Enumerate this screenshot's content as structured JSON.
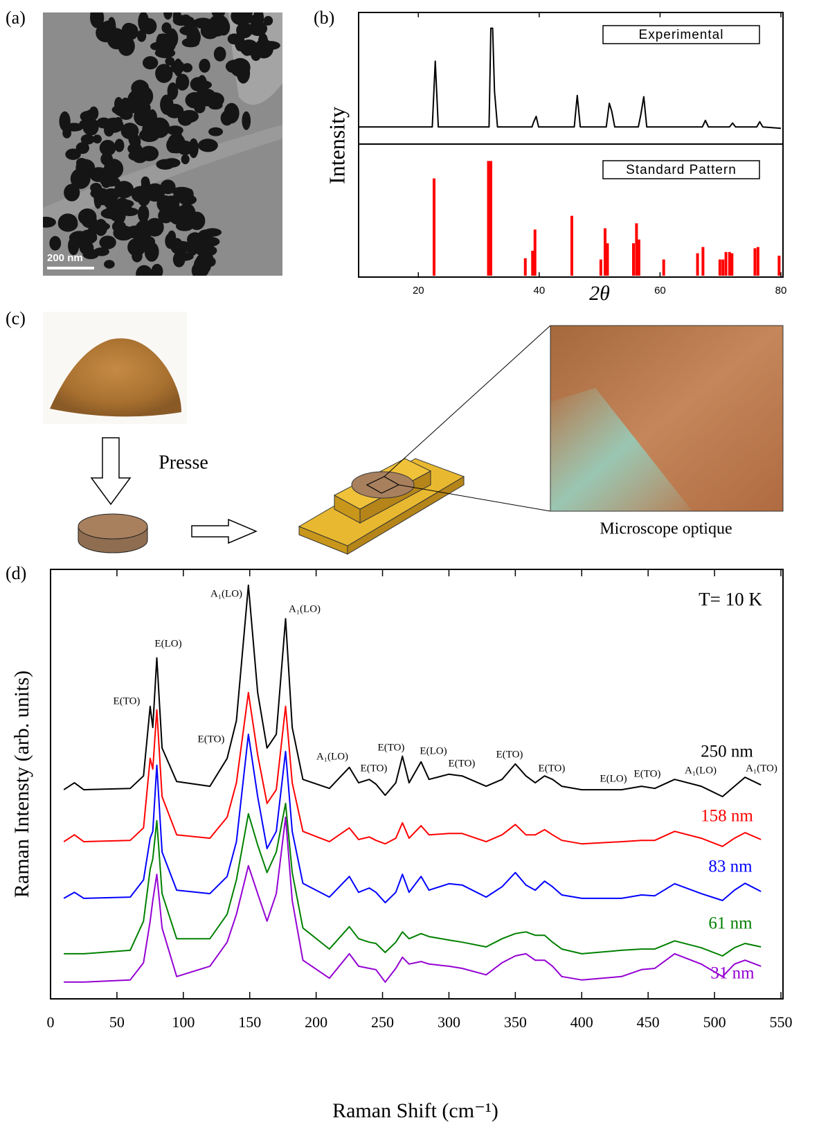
{
  "panel_labels": [
    "(a)",
    "(b)",
    "(c)",
    "(d)"
  ],
  "tem": {
    "scale_bar": "200 nm"
  },
  "diagram": {
    "press_label": "Presse",
    "microscope_label": "Microscope optique"
  },
  "chart_data": [
    {
      "type": "line",
      "label": "Experimental",
      "ylabel": "Intensity",
      "color": "#000000",
      "xlim": [
        10,
        80
      ],
      "ylim": [
        0,
        100
      ],
      "x": [
        10,
        22.3,
        22.8,
        23.3,
        31.7,
        32.0,
        32.3,
        32.6,
        33.1,
        38.8,
        39.1,
        39.5,
        39.9,
        45.8,
        46.3,
        46.8,
        51.1,
        51.6,
        52.0,
        52.5,
        56.4,
        56.8,
        57.3,
        57.8,
        67.0,
        67.5,
        68.0,
        71.5,
        72.0,
        72.5,
        76.0,
        76.5,
        77.0,
        80
      ],
      "values": [
        13,
        13,
        63,
        13,
        13,
        88,
        88,
        40,
        13,
        13,
        17,
        21,
        13,
        13,
        37,
        13,
        13,
        31,
        25,
        13,
        13,
        22,
        36,
        13,
        13,
        18,
        13,
        13,
        16,
        13,
        13,
        17,
        13,
        12
      ]
    },
    {
      "type": "bar",
      "label": "Standard Pattern",
      "xlabel": "2θ",
      "color": "#ff0000",
      "xlim": [
        10,
        80
      ],
      "ylim": [
        0,
        100
      ],
      "xticks": [
        20,
        40,
        60,
        80
      ],
      "x": [
        22.6,
        31.6,
        32.0,
        37.7,
        38.9,
        39.3,
        45.4,
        50.2,
        50.9,
        51.3,
        55.6,
        56.1,
        56.5,
        60.6,
        66.2,
        67.1,
        69.9,
        70.4,
        70.9,
        71.5,
        71.9,
        75.7,
        76.2,
        79.7
      ],
      "values": [
        78,
        92,
        92,
        14,
        20,
        37,
        48,
        13,
        38,
        26,
        26,
        42,
        29,
        13,
        18,
        23,
        13,
        13,
        19,
        19,
        18,
        22,
        23,
        16
      ]
    },
    {
      "type": "line",
      "xlabel": "Raman Shift (cm⁻¹)",
      "ylabel": "Raman Intensty (arb. units)",
      "note": "T= 10 K",
      "xlim": [
        0,
        550
      ],
      "ylim": [
        0,
        100
      ],
      "xticks": [
        0,
        50,
        100,
        150,
        200,
        250,
        300,
        350,
        400,
        450,
        500,
        550
      ],
      "x": [
        10,
        18,
        25,
        60,
        70,
        75,
        77,
        80,
        84,
        95,
        120,
        133,
        140,
        149,
        156,
        163,
        170,
        177,
        182,
        190,
        210,
        225,
        232,
        240,
        245,
        252,
        260,
        265,
        270,
        279,
        285,
        300,
        310,
        328,
        340,
        350,
        358,
        365,
        372,
        378,
        385,
        400,
        430,
        445,
        455,
        470,
        490,
        506,
        515,
        523,
        535
      ],
      "series": [
        {
          "name": "250 nm",
          "color": "#000000",
          "values": [
            48.7,
            50.3,
            48.7,
            49.0,
            51.9,
            68.1,
            63.2,
            79.4,
            58.4,
            50.6,
            49.5,
            56.0,
            64.8,
            96.3,
            71.3,
            58.4,
            61.6,
            88.5,
            63.2,
            51.1,
            49.0,
            53.9,
            50.3,
            51.1,
            50.0,
            47.4,
            50.3,
            56.5,
            50.3,
            55.2,
            51.1,
            52.3,
            51.9,
            49.5,
            51.1,
            54.7,
            51.9,
            50.3,
            51.9,
            51.1,
            49.5,
            48.7,
            48.7,
            49.5,
            49.0,
            51.1,
            49.5,
            47.1,
            49.5,
            51.6,
            49.8
          ]
        },
        {
          "name": "158 nm",
          "color": "#ff0000",
          "values": [
            36.6,
            38.2,
            36.6,
            36.9,
            39.8,
            56.0,
            53.5,
            67.3,
            47.1,
            38.2,
            37.4,
            42.3,
            50.3,
            71.3,
            56.8,
            45.5,
            48.7,
            68.1,
            50.3,
            39.0,
            36.6,
            39.8,
            37.1,
            37.7,
            36.9,
            36.1,
            37.4,
            41.0,
            37.4,
            40.3,
            38.2,
            38.5,
            38.5,
            36.6,
            38.2,
            40.6,
            38.2,
            38.2,
            39.4,
            38.2,
            36.9,
            36.1,
            36.6,
            36.9,
            36.9,
            39.0,
            37.4,
            35.5,
            37.4,
            38.7,
            37.1
          ]
        },
        {
          "name": "83 nm",
          "color": "#0000ff",
          "values": [
            23.4,
            24.8,
            23.4,
            23.7,
            27.7,
            37.4,
            39.0,
            54.4,
            34.2,
            25.3,
            24.5,
            28.5,
            36.6,
            61.6,
            47.1,
            35.0,
            39.0,
            57.6,
            39.0,
            26.9,
            23.7,
            28.5,
            24.8,
            25.8,
            24.8,
            22.4,
            24.8,
            29.0,
            24.8,
            28.5,
            25.3,
            26.8,
            26.5,
            23.7,
            26.1,
            29.4,
            26.5,
            25.3,
            27.4,
            26.1,
            24.2,
            23.4,
            23.4,
            24.2,
            24.0,
            26.8,
            24.5,
            22.9,
            25.3,
            26.9,
            25.0
          ]
        },
        {
          "name": "61 nm",
          "color": "#008000",
          "values": [
            10.5,
            10.5,
            10.5,
            11.3,
            18.1,
            30.2,
            32.6,
            41.5,
            24.5,
            14.0,
            14.0,
            19.7,
            27.7,
            43.1,
            35.8,
            29.4,
            34.2,
            45.5,
            29.4,
            16.5,
            11.6,
            16.8,
            14.0,
            13.2,
            12.9,
            10.8,
            13.2,
            15.6,
            14.0,
            15.2,
            14.5,
            13.7,
            13.2,
            12.1,
            14.0,
            15.2,
            15.6,
            14.8,
            14.8,
            13.2,
            11.6,
            10.5,
            11.3,
            11.6,
            11.6,
            13.5,
            11.9,
            10.0,
            11.9,
            12.9,
            12.1
          ]
        },
        {
          "name": "31 nm",
          "color": "#9400d3",
          "values": [
            3.9,
            3.9,
            3.9,
            4.4,
            8.4,
            18.1,
            22.9,
            29.0,
            16.5,
            5.2,
            7.6,
            13.2,
            19.7,
            31.0,
            24.5,
            18.1,
            24.5,
            42.3,
            22.9,
            9.0,
            4.8,
            10.5,
            7.6,
            7.1,
            6.8,
            3.9,
            7.1,
            9.7,
            8.1,
            8.7,
            8.1,
            7.6,
            7.1,
            5.6,
            8.4,
            10.0,
            10.5,
            9.0,
            9.0,
            7.6,
            5.2,
            4.4,
            5.2,
            6.8,
            7.1,
            10.5,
            8.1,
            5.2,
            8.1,
            9.0,
            7.6
          ]
        }
      ],
      "annotations": [
        "E(TO)",
        "E(LO)",
        "A₁(LO)",
        "A₁(LO)",
        "E(TO)",
        "A₁(LO)",
        "E(TO)",
        "E(TO)",
        "E(LO)",
        "E(TO)",
        "E(TO)",
        "E(TO)",
        "E(LO)",
        "E(TO)",
        "A₁(LO)",
        "A₁(TO)"
      ]
    }
  ]
}
